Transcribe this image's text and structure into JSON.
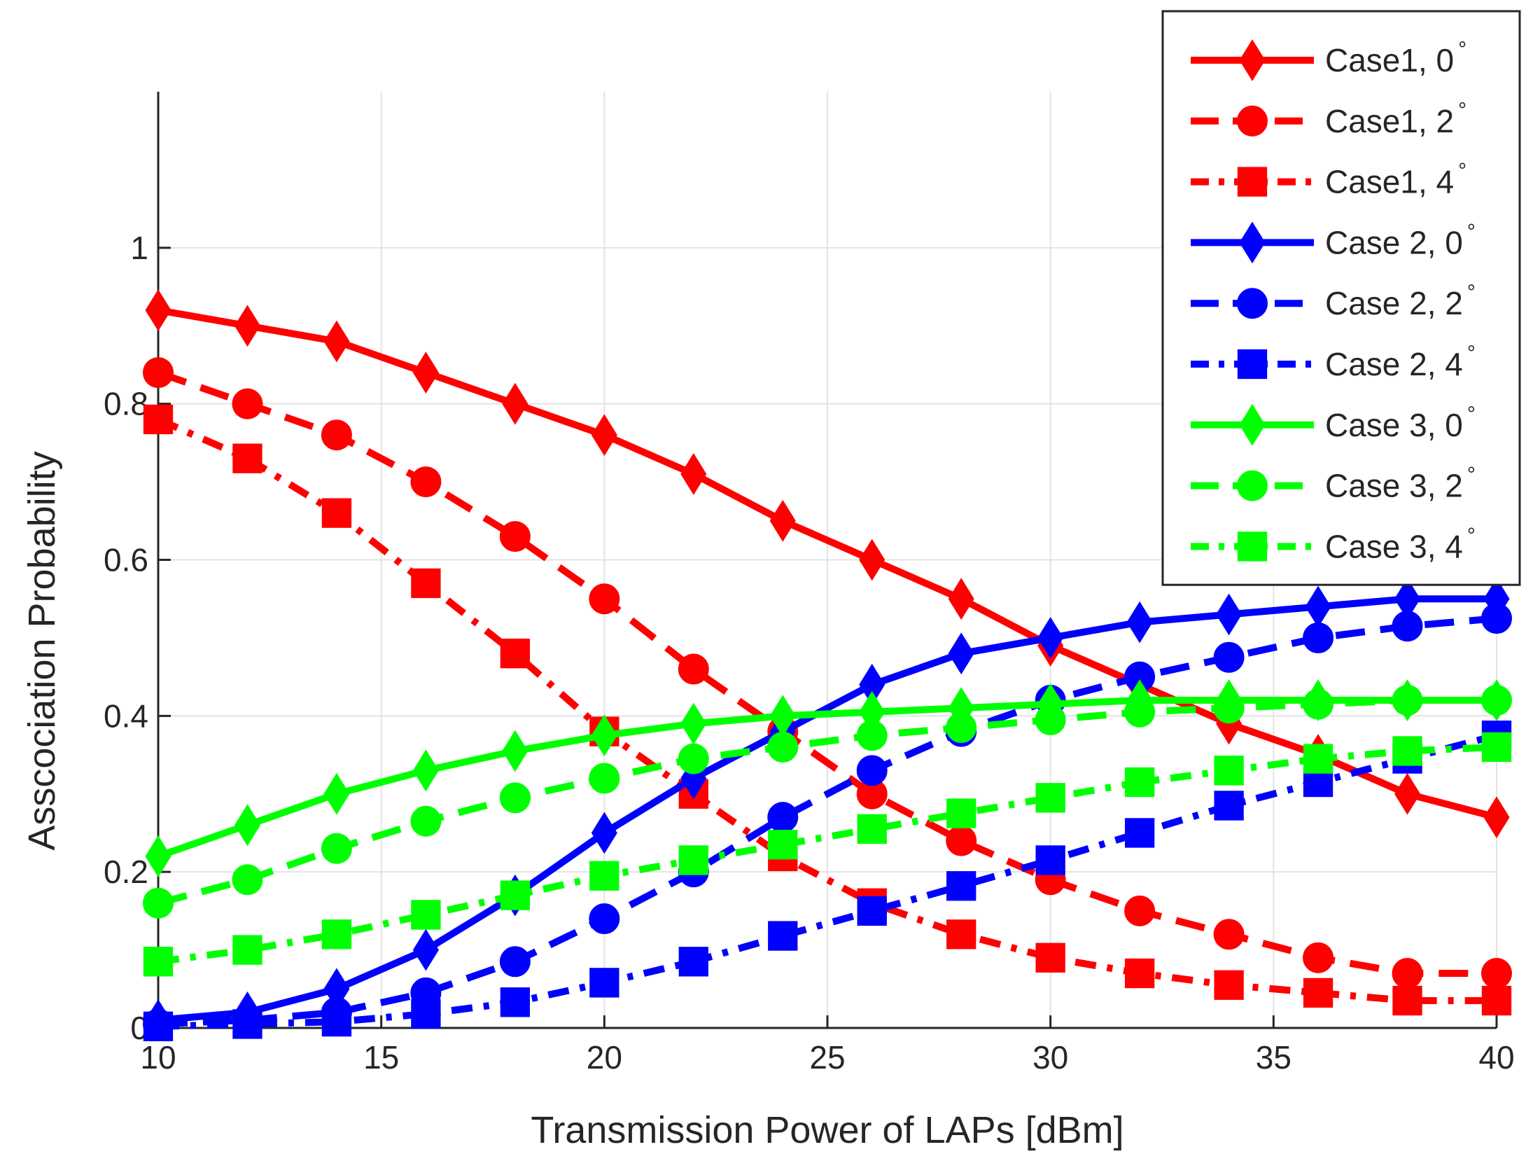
{
  "chart_data": {
    "type": "line",
    "title": "",
    "xlabel": "Transmission Power of LAPs [dBm]",
    "ylabel": "Asscociation Probability",
    "xlim": [
      10,
      40
    ],
    "ylim": [
      0,
      1.2
    ],
    "grid": true,
    "legend_position": "top-right",
    "x_ticks": [
      10,
      15,
      20,
      25,
      30,
      35,
      40
    ],
    "x_tick_labels": [
      "10",
      "15",
      "20",
      "25",
      "30",
      "35",
      "40"
    ],
    "y_ticks": [
      0,
      0.2,
      0.4,
      0.6,
      0.8,
      1
    ],
    "y_tick_labels": [
      "0",
      "0.2",
      "0.4",
      "0.6",
      "0.8",
      "1"
    ],
    "x": [
      10,
      12,
      14,
      16,
      18,
      20,
      22,
      24,
      26,
      28,
      30,
      32,
      34,
      36,
      38,
      40
    ],
    "series": [
      {
        "name": "Case1, 0",
        "deg": "°",
        "color": "#ff0000",
        "dash": "solid",
        "marker": "diamond",
        "values": [
          0.92,
          0.9,
          0.88,
          0.84,
          0.8,
          0.76,
          0.71,
          0.65,
          0.6,
          0.55,
          0.49,
          0.44,
          0.39,
          0.35,
          0.3,
          0.27
        ]
      },
      {
        "name": "Case1, 2",
        "deg": "°",
        "color": "#ff0000",
        "dash": "dash",
        "marker": "circle",
        "values": [
          0.84,
          0.8,
          0.76,
          0.7,
          0.63,
          0.55,
          0.46,
          0.38,
          0.3,
          0.24,
          0.19,
          0.15,
          0.12,
          0.09,
          0.07,
          0.07
        ]
      },
      {
        "name": "Case1, 4",
        "deg": "°",
        "color": "#ff0000",
        "dash": "dashdot",
        "marker": "square",
        "values": [
          0.78,
          0.73,
          0.66,
          0.57,
          0.48,
          0.38,
          0.3,
          0.22,
          0.16,
          0.12,
          0.09,
          0.07,
          0.055,
          0.045,
          0.035,
          0.035
        ]
      },
      {
        "name": "Case 2, 0",
        "deg": "°",
        "color": "#0000ff",
        "dash": "solid",
        "marker": "diamond",
        "values": [
          0.01,
          0.02,
          0.05,
          0.1,
          0.17,
          0.25,
          0.32,
          0.38,
          0.44,
          0.48,
          0.5,
          0.52,
          0.53,
          0.54,
          0.55,
          0.55
        ]
      },
      {
        "name": "Case 2, 2",
        "deg": "°",
        "color": "#0000ff",
        "dash": "dash",
        "marker": "circle",
        "values": [
          0.005,
          0.01,
          0.02,
          0.045,
          0.085,
          0.14,
          0.2,
          0.27,
          0.33,
          0.38,
          0.42,
          0.45,
          0.475,
          0.5,
          0.515,
          0.525
        ]
      },
      {
        "name": "Case 2, 4",
        "deg": "°",
        "color": "#0000ff",
        "dash": "dashdot",
        "marker": "square",
        "values": [
          0.002,
          0.005,
          0.008,
          0.018,
          0.033,
          0.058,
          0.085,
          0.118,
          0.15,
          0.182,
          0.215,
          0.25,
          0.285,
          0.315,
          0.345,
          0.375
        ]
      },
      {
        "name": "Case 3, 0",
        "deg": "°",
        "color": "#00ff00",
        "dash": "solid",
        "marker": "diamond",
        "values": [
          0.22,
          0.26,
          0.3,
          0.33,
          0.355,
          0.375,
          0.39,
          0.4,
          0.405,
          0.41,
          0.415,
          0.42,
          0.42,
          0.42,
          0.42,
          0.42
        ]
      },
      {
        "name": "Case 3, 2",
        "deg": "°",
        "color": "#00ff00",
        "dash": "dash",
        "marker": "circle",
        "values": [
          0.16,
          0.19,
          0.23,
          0.265,
          0.295,
          0.32,
          0.345,
          0.36,
          0.375,
          0.385,
          0.395,
          0.405,
          0.41,
          0.415,
          0.42,
          0.42
        ]
      },
      {
        "name": "Case 3, 4",
        "deg": "°",
        "color": "#00ff00",
        "dash": "dashdot",
        "marker": "square",
        "values": [
          0.085,
          0.1,
          0.12,
          0.145,
          0.17,
          0.195,
          0.215,
          0.235,
          0.255,
          0.275,
          0.295,
          0.315,
          0.33,
          0.345,
          0.355,
          0.36
        ]
      }
    ]
  }
}
